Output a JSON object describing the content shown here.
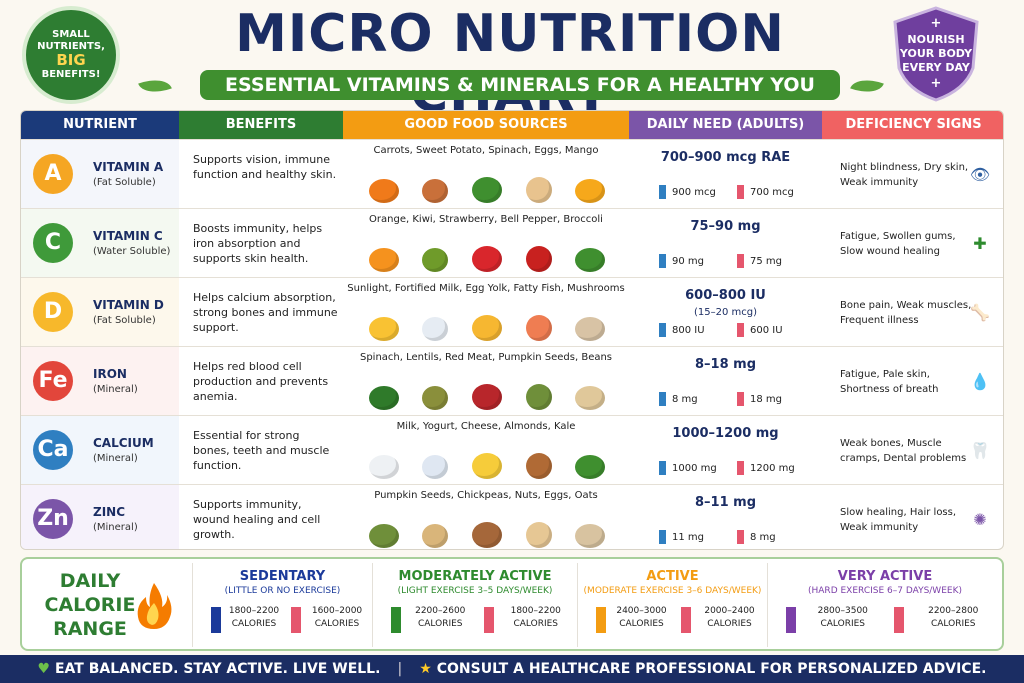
{
  "badge_left": {
    "line1": "SMALL",
    "line2": "NUTRIENTS,",
    "line3": "BIG",
    "line4": "BENEFITS!"
  },
  "badge_right": {
    "line1": "NOURISH",
    "line2": "YOUR BODY",
    "line3": "EVERY DAY"
  },
  "title": "MICRO NUTRITION CHART",
  "subtitle": "ESSENTIAL VITAMINS & MINERALS FOR A HEALTHY YOU",
  "headers": {
    "nutrient": "NUTRIENT",
    "benefits": "BENEFITS",
    "sources": "GOOD FOOD SOURCES",
    "daily": "DAILY NEED (ADULTS)",
    "deficiency": "DEFICIENCY SIGNS"
  },
  "colors": {
    "nutrient": "#1b3a7a",
    "benefits": "#2e7d32",
    "sources": "#f39c12",
    "daily": "#7b55a8",
    "deficiency": "#f06262"
  },
  "nutrients": [
    {
      "symbol": "A",
      "color": "#f5a623",
      "name": "VITAMIN A",
      "type": "(Fat Soluble)",
      "benefits": "Supports vision, immune function and healthy skin.",
      "sources": "Carrots, Sweet Potato, Spinach, Eggs, Mango",
      "need": "700–900 mcg RAE",
      "need_sub": "",
      "male": "900 mcg",
      "female": "700 mcg",
      "deficiency": "Night blindness, Dry skin, Weak immunity",
      "icon": "eye-icon",
      "foods": [
        "#f07a1a",
        "#c9703a",
        "#3f8f2f",
        "#e8c38e",
        "#f6a81b"
      ]
    },
    {
      "symbol": "C",
      "color": "#3f9a3a",
      "name": "VITAMIN C",
      "type": "(Water Soluble)",
      "benefits": "Boosts immunity, helps iron absorption and supports skin health.",
      "sources": "Orange, Kiwi, Strawberry, Bell Pepper, Broccoli",
      "need": "75–90 mg",
      "need_sub": "",
      "male": "90 mg",
      "female": "75 mg",
      "deficiency": "Fatigue, Swollen gums, Slow wound healing",
      "icon": "shield-plus-icon",
      "foods": [
        "#f5921e",
        "#6f9b2a",
        "#d9262c",
        "#c8211f",
        "#3f8f2f"
      ]
    },
    {
      "symbol": "D",
      "color": "#f7b82b",
      "name": "VITAMIN D",
      "type": "(Fat Soluble)",
      "benefits": "Helps calcium absorption, strong bones and immune support.",
      "sources": "Sunlight, Fortified Milk, Egg Yolk, Fatty Fish, Mushrooms",
      "need": "600–800 IU",
      "need_sub": "(15–20 mcg)",
      "male": "800 IU",
      "female": "600 IU",
      "deficiency": "Bone pain, Weak muscles, Frequent illness",
      "icon": "bone-icon",
      "foods": [
        "#f9c233",
        "#e6ecf3",
        "#f6b731",
        "#ef7d52",
        "#d8c3a5"
      ]
    },
    {
      "symbol": "Fe",
      "color": "#e2463b",
      "name": "IRON",
      "type": "(Mineral)",
      "benefits": "Helps red blood cell production and prevents anemia.",
      "sources": "Spinach, Lentils, Red Meat, Pumpkin Seeds, Beans",
      "need": "8–18 mg",
      "need_sub": "",
      "male": "8 mg",
      "female": "18 mg",
      "deficiency": "Fatigue, Pale skin, Shortness of breath",
      "icon": "blood-drop-icon",
      "foods": [
        "#2f7a2a",
        "#8a8f3b",
        "#b8262b",
        "#6f8f3a",
        "#e0c89a"
      ]
    },
    {
      "symbol": "Ca",
      "color": "#2f7fc1",
      "name": "CALCIUM",
      "type": "(Mineral)",
      "benefits": "Essential for strong bones, teeth and muscle function.",
      "sources": "Milk, Yogurt, Cheese, Almonds, Kale",
      "need": "1000–1200 mg",
      "need_sub": "",
      "male": "1000 mg",
      "female": "1200 mg",
      "deficiency": "Weak bones, Muscle cramps, Dental problems",
      "icon": "tooth-icon",
      "foods": [
        "#eef1f4",
        "#dfe7f2",
        "#f6cc3a",
        "#b06a35",
        "#3f8f2f"
      ]
    },
    {
      "symbol": "Zn",
      "color": "#7b55a8",
      "name": "ZINC",
      "type": "(Mineral)",
      "benefits": "Supports immunity, wound healing and cell growth.",
      "sources": "Pumpkin Seeds, Chickpeas, Nuts, Eggs, Oats",
      "need": "8–11 mg",
      "need_sub": "",
      "male": "11 mg",
      "female": "8 mg",
      "deficiency": "Slow healing, Hair loss, Weak immunity",
      "icon": "virus-icon",
      "foods": [
        "#6f8f3a",
        "#d9b57a",
        "#a5673a",
        "#e6c794",
        "#d8c3a0"
      ]
    }
  ],
  "calorie": {
    "title": "DAILY CALORIE RANGE",
    "levels": [
      {
        "name": "SEDENTARY",
        "sub": "(LITTLE OR NO EXERCISE)",
        "color": "#1b3a9a",
        "male": "1800–2200",
        "female": "1600–2000",
        "unit": "CALORIES"
      },
      {
        "name": "MODERATELY ACTIVE",
        "sub": "(LIGHT EXERCISE 3–5 DAYS/WEEK)",
        "color": "#2e8b2e",
        "male": "2200–2600",
        "female": "1800–2200",
        "unit": "CALORIES"
      },
      {
        "name": "ACTIVE",
        "sub": "(MODERATE EXERCISE 3–6 DAYS/WEEK)",
        "color": "#f39c12",
        "male": "2400–3000",
        "female": "2000–2400",
        "unit": "CALORIES"
      },
      {
        "name": "VERY ACTIVE",
        "sub": "(HARD EXERCISE 6–7 DAYS/WEEK)",
        "color": "#7b3fa8",
        "male": "2800–3500",
        "female": "2200–2800",
        "unit": "CALORIES"
      }
    ]
  },
  "footer": {
    "left": "EAT BALANCED. STAY ACTIVE. LIVE WELL.",
    "right": "CONSULT A HEALTHCARE PROFESSIONAL FOR PERSONALIZED ADVICE."
  }
}
